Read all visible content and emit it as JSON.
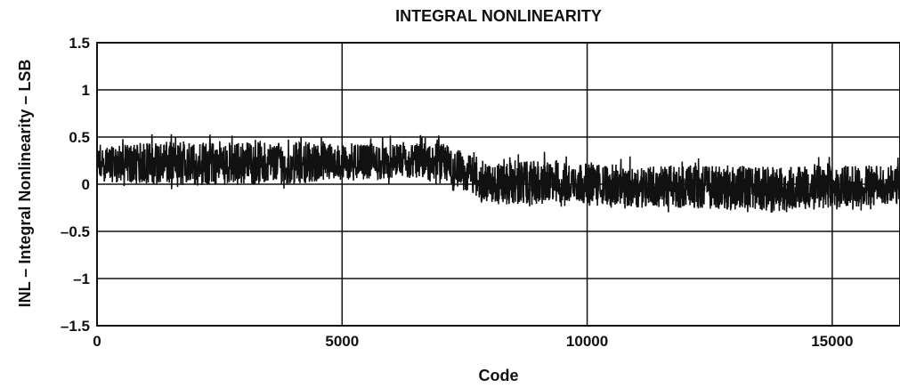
{
  "chart_data": {
    "type": "line",
    "title": "INTEGRAL NONLINEARITY",
    "xlabel": "Code",
    "ylabel": "INL – Integral Nonlinearity – LSB",
    "xlim": [
      0,
      16383
    ],
    "ylim": [
      -1.5,
      1.5
    ],
    "x_ticks": [
      0,
      5000,
      10000,
      15000
    ],
    "x_tick_labels": [
      "0",
      "5000",
      "10000",
      "15000"
    ],
    "y_ticks": [
      1.5,
      1,
      0.5,
      0,
      -0.5,
      -1,
      -1.5
    ],
    "y_tick_labels": [
      "1.5",
      "1",
      "0.5",
      "0",
      "–0.5",
      "–1",
      "–1.5"
    ],
    "grid": true,
    "legend": "none",
    "series": [
      {
        "color": "#111111",
        "x": [
          0,
          1000,
          2000,
          3000,
          4000,
          5000,
          6000,
          7000,
          8000,
          9000,
          10000,
          11000,
          12000,
          13000,
          14000,
          15000,
          16383
        ],
        "lower": [
          0.03,
          0.0,
          -0.02,
          0.0,
          0.0,
          0.05,
          0.05,
          0.05,
          -0.22,
          -0.22,
          -0.2,
          -0.25,
          -0.25,
          -0.28,
          -0.28,
          -0.25,
          -0.22
        ],
        "upper": [
          0.38,
          0.45,
          0.45,
          0.45,
          0.45,
          0.42,
          0.42,
          0.45,
          0.22,
          0.25,
          0.22,
          0.2,
          0.2,
          0.2,
          0.18,
          0.2,
          0.2
        ],
        "center": [
          0.2,
          0.22,
          0.2,
          0.2,
          0.2,
          0.22,
          0.22,
          0.25,
          0.0,
          0.02,
          0.0,
          -0.02,
          -0.02,
          -0.05,
          -0.05,
          -0.03,
          -0.02
        ]
      }
    ]
  }
}
